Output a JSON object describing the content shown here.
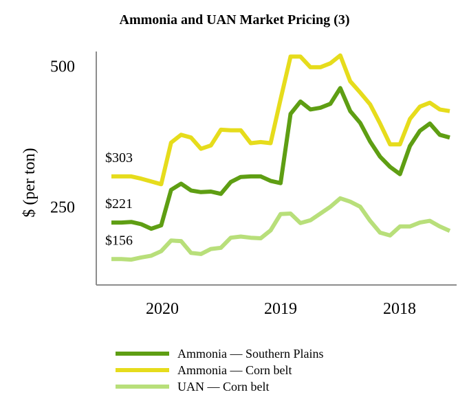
{
  "chart_data": {
    "type": "line",
    "title": "Ammonia and UAN Market Pricing (3)",
    "xlabel": "",
    "ylabel": "$ (per ton)",
    "ylim": [
      110,
      525
    ],
    "yticks": [
      250,
      500
    ],
    "xticks": [
      "2020",
      "2019",
      "2018"
    ],
    "grid": false,
    "legend_position": "bottom",
    "start_labels": [
      "$303",
      "$221",
      "$156"
    ],
    "series": [
      {
        "name": "Ammonia — Southern Plains",
        "color": "#5e9e13",
        "values": [
          221,
          221,
          222,
          218,
          210,
          216,
          279,
          290,
          278,
          275,
          276,
          272,
          293,
          302,
          303,
          303,
          295,
          291,
          414,
          436,
          422,
          425,
          432,
          460,
          419,
          398,
          365,
          338,
          320,
          307,
          357,
          384,
          397,
          377,
          372
        ]
      },
      {
        "name": "Ammonia — Corn belt",
        "color": "#e6dc1c",
        "values": [
          303,
          303,
          303,
          299,
          294,
          289,
          363,
          377,
          372,
          352,
          358,
          386,
          385,
          385,
          362,
          364,
          362,
          440,
          516,
          516,
          497,
          497,
          504,
          518,
          472,
          452,
          431,
          397,
          360,
          360,
          405,
          427,
          434,
          422,
          419
        ]
      },
      {
        "name": "UAN — Corn belt",
        "color": "#b8df7a",
        "values": [
          156,
          156,
          155,
          159,
          162,
          170,
          189,
          188,
          167,
          165,
          174,
          176,
          194,
          196,
          194,
          193,
          207,
          236,
          237,
          220,
          225,
          237,
          249,
          264,
          258,
          249,
          224,
          203,
          198,
          214,
          214,
          221,
          224,
          214,
          206
        ]
      }
    ]
  }
}
